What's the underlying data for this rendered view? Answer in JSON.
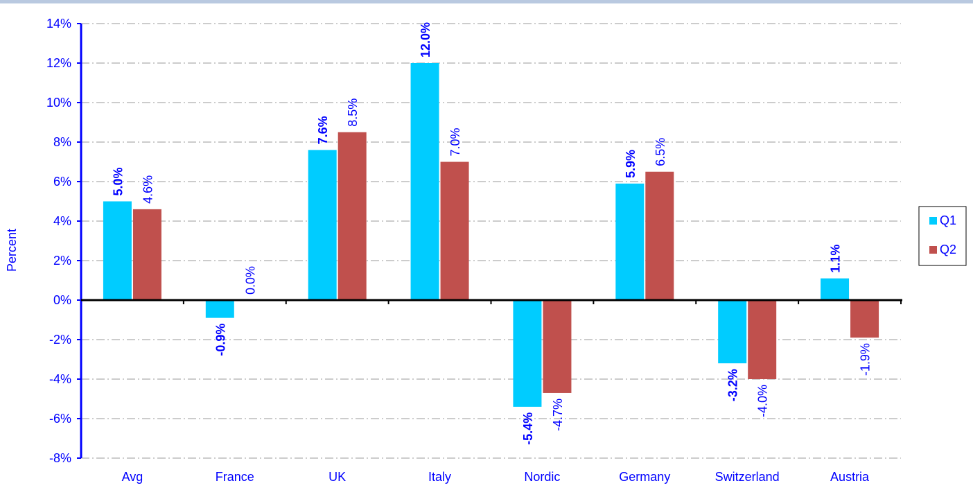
{
  "colors": {
    "q1": "#00ccff",
    "q2": "#c0504d",
    "axis": "#0000ff",
    "grid": "#999999",
    "text": "#0000ff"
  },
  "chart_data": {
    "type": "bar",
    "title": "",
    "xlabel": "",
    "ylabel": "Percent",
    "ylim": [
      -8,
      14
    ],
    "ytick_step": 2,
    "ytick_labels": [
      "-8%",
      "-6%",
      "-4%",
      "-2%",
      "0%",
      "2%",
      "4%",
      "6%",
      "8%",
      "10%",
      "12%",
      "14%"
    ],
    "grid": true,
    "legend_position": "right",
    "categories": [
      "Avg",
      "France",
      "UK",
      "Italy",
      "Nordic",
      "Germany",
      "Switzerland",
      "Austria"
    ],
    "series": [
      {
        "name": "Q1",
        "values": [
          5.0,
          -0.9,
          7.6,
          12.0,
          -5.4,
          5.9,
          -3.2,
          1.1
        ],
        "labels": [
          "5.0%",
          "-0.9%",
          "7.6%",
          "12.0%",
          "-5.4%",
          "5.9%",
          "-3.2%",
          "1.1%"
        ]
      },
      {
        "name": "Q2",
        "values": [
          4.6,
          0.0,
          8.5,
          7.0,
          -4.7,
          6.5,
          -4.0,
          -1.9
        ],
        "labels": [
          "4.6%",
          "0.0%",
          "8.5%",
          "7.0%",
          "-4.7%",
          "6.5%",
          "-4.0%",
          "-1.9%"
        ]
      }
    ]
  }
}
